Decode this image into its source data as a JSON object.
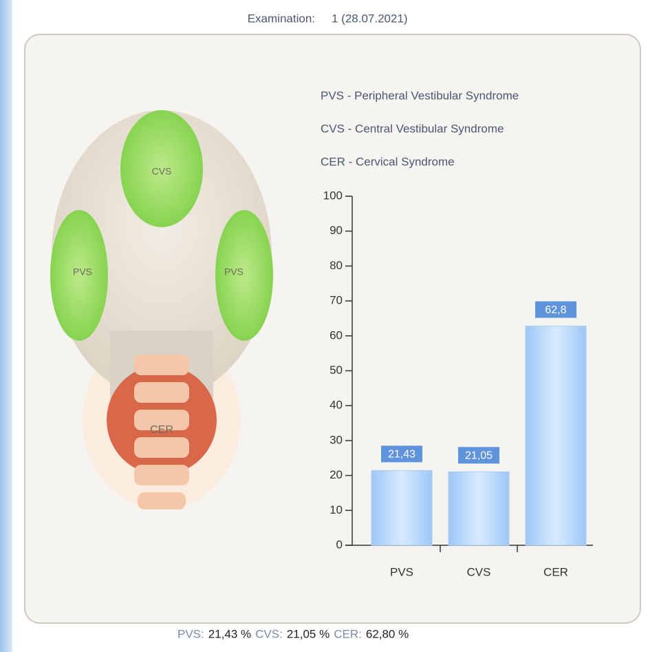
{
  "header": {
    "label": "Examination:",
    "value": "1 (28.07.2021)"
  },
  "legend": [
    "PVS - Peripheral Vestibular Syndrome",
    "CVS - Central Vestibular Syndrome",
    "CER - Cervical Syndrome"
  ],
  "head_labels": {
    "top": "CVS",
    "left": "PVS",
    "right": "PVS",
    "neck": "CER"
  },
  "chart_data": {
    "type": "bar",
    "categories": [
      "PVS",
      "CVS",
      "CER"
    ],
    "values": [
      21.43,
      21.05,
      62.8
    ],
    "value_labels": [
      "21,43",
      "21,05",
      "62,8"
    ],
    "color": "#a9cdf7",
    "ylim": [
      0,
      100
    ],
    "yticks": [
      0,
      10,
      20,
      30,
      40,
      50,
      60,
      70,
      80,
      90,
      100
    ]
  },
  "footer": [
    {
      "label": "PVS:",
      "value": "21,43 %"
    },
    {
      "label": "CVS:",
      "value": "21,05 %"
    },
    {
      "label": "CER:",
      "value": "62,80 %"
    }
  ]
}
